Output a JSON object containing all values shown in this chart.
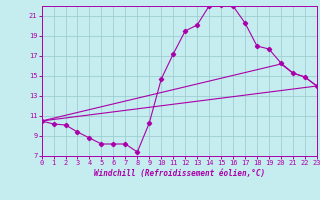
{
  "xlabel": "Windchill (Refroidissement éolien,°C)",
  "xlim": [
    0,
    23
  ],
  "ylim": [
    7,
    22
  ],
  "xticks": [
    0,
    1,
    2,
    3,
    4,
    5,
    6,
    7,
    8,
    9,
    10,
    11,
    12,
    13,
    14,
    15,
    16,
    17,
    18,
    19,
    20,
    21,
    22,
    23
  ],
  "yticks": [
    7,
    9,
    11,
    13,
    15,
    17,
    19,
    21
  ],
  "bg_color": "#c5ecee",
  "line_color": "#aa00aa",
  "grid_color": "#9dcfd2",
  "curve_main_x": [
    0,
    1,
    2,
    3,
    4,
    5,
    6,
    7,
    8,
    9,
    10,
    11,
    12,
    13,
    14,
    15,
    16,
    17,
    18,
    19,
    20,
    21,
    22,
    23
  ],
  "curve_main_y": [
    10.5,
    10.2,
    10.1,
    9.4,
    8.8,
    8.2,
    8.2,
    8.2,
    7.4,
    10.3,
    14.7,
    17.2,
    19.5,
    20.1,
    22.0,
    22.1,
    22.0,
    20.3,
    18.0,
    17.7,
    16.3,
    15.3,
    14.9,
    14.0
  ],
  "curve_line1_x": [
    0,
    23
  ],
  "curve_line1_y": [
    10.5,
    14.0
  ],
  "curve_line2_x": [
    0,
    20,
    21,
    22,
    23
  ],
  "curve_line2_y": [
    10.5,
    16.2,
    15.3,
    14.9,
    14.0
  ],
  "tick_fontsize": 5,
  "xlabel_fontsize": 5.5
}
